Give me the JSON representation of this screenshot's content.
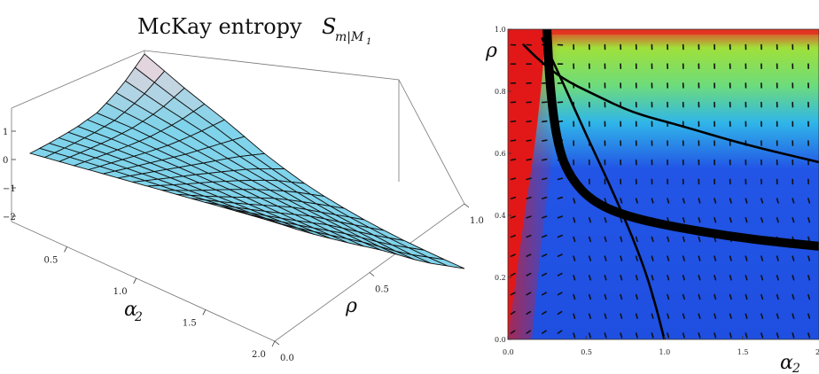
{
  "chart_data": [
    {
      "type": "surface3d",
      "title": "McKay entropy ",
      "title_var": "S",
      "title_sub": "m|M",
      "title_subsub": "1",
      "xlabel": "α",
      "xlabel_sub": "2",
      "ylabel": "ρ",
      "x_ticks": [
        "0.5",
        "1.0",
        "1.5",
        "2.0"
      ],
      "y_ticks": [
        "0.0",
        "0.5",
        "1.0"
      ],
      "z_ticks": [
        "1",
        "0",
        "−1",
        "−2"
      ],
      "xlim": [
        0.1,
        2.0
      ],
      "ylim": [
        0.0,
        1.0
      ],
      "zlim": [
        -2.4,
        1.8
      ],
      "grid": {
        "alpha": [
          0.1,
          0.35,
          0.6,
          0.85,
          1.1,
          1.35,
          1.6,
          1.85,
          2.0
        ],
        "rho": [
          0.0,
          0.2,
          0.4,
          0.6,
          0.8,
          1.0
        ],
        "values": [
          [
            0.0,
            0.05,
            0.15,
            0.35,
            0.9,
            1.7
          ],
          [
            0.0,
            0.03,
            0.08,
            0.2,
            0.45,
            0.9
          ],
          [
            0.0,
            -0.02,
            -0.05,
            -0.05,
            0.05,
            0.2
          ],
          [
            0.0,
            -0.1,
            -0.2,
            -0.3,
            -0.4,
            -0.6
          ],
          [
            0.0,
            -0.2,
            -0.35,
            -0.55,
            -0.8,
            -1.2
          ],
          [
            0.0,
            -0.3,
            -0.55,
            -0.8,
            -1.2,
            -1.6
          ],
          [
            0.0,
            -0.4,
            -0.75,
            -1.05,
            -1.5,
            -1.9
          ],
          [
            0.0,
            -0.5,
            -0.9,
            -1.3,
            -1.8,
            -2.1
          ],
          [
            0.0,
            -0.55,
            -1.0,
            -1.4,
            -1.9,
            -2.2
          ]
        ]
      },
      "colors": {
        "surface_low": "#7fd3ea",
        "surface_high": "#f6d6dc",
        "mesh": "#111111"
      }
    },
    {
      "type": "heatmap",
      "xlabel": "α",
      "xlabel_sub": "2",
      "ylabel": "ρ",
      "x_ticks": [
        "0.0",
        "0.5",
        "1.0",
        "1.5",
        "2"
      ],
      "y_ticks": [
        "0.0",
        "0.2",
        "0.4",
        "0.6",
        "0.8",
        "1.0"
      ],
      "xlim": [
        0.0,
        2.0
      ],
      "ylim": [
        0.0,
        1.0
      ],
      "colormap": [
        "#1f4fe0",
        "#20b0e6",
        "#8ee04a",
        "#f07a2a",
        "#e21818"
      ],
      "curves": [
        {
          "name": "",
          "width": "thick",
          "points": [
            [
              0.25,
              1.0
            ],
            [
              0.27,
              0.8
            ],
            [
              0.32,
              0.62
            ],
            [
              0.4,
              0.52
            ],
            [
              0.55,
              0.44
            ],
            [
              0.8,
              0.39
            ],
            [
              1.2,
              0.35
            ],
            [
              1.6,
              0.32
            ],
            [
              2.0,
              0.3
            ]
          ]
        },
        {
          "name": "",
          "width": "thin",
          "points": [
            [
              0.1,
              0.95
            ],
            [
              0.2,
              0.9
            ],
            [
              0.35,
              0.84
            ],
            [
              0.55,
              0.79
            ],
            [
              0.8,
              0.73
            ],
            [
              1.1,
              0.69
            ],
            [
              1.5,
              0.63
            ],
            [
              2.0,
              0.57
            ]
          ]
        },
        {
          "name": "",
          "width": "thin",
          "points": [
            [
              0.22,
              0.97
            ],
            [
              0.35,
              0.83
            ],
            [
              0.5,
              0.66
            ],
            [
              0.65,
              0.5
            ],
            [
              0.78,
              0.35
            ],
            [
              0.88,
              0.22
            ],
            [
              0.95,
              0.1
            ],
            [
              1.0,
              0.0
            ]
          ]
        }
      ]
    }
  ]
}
